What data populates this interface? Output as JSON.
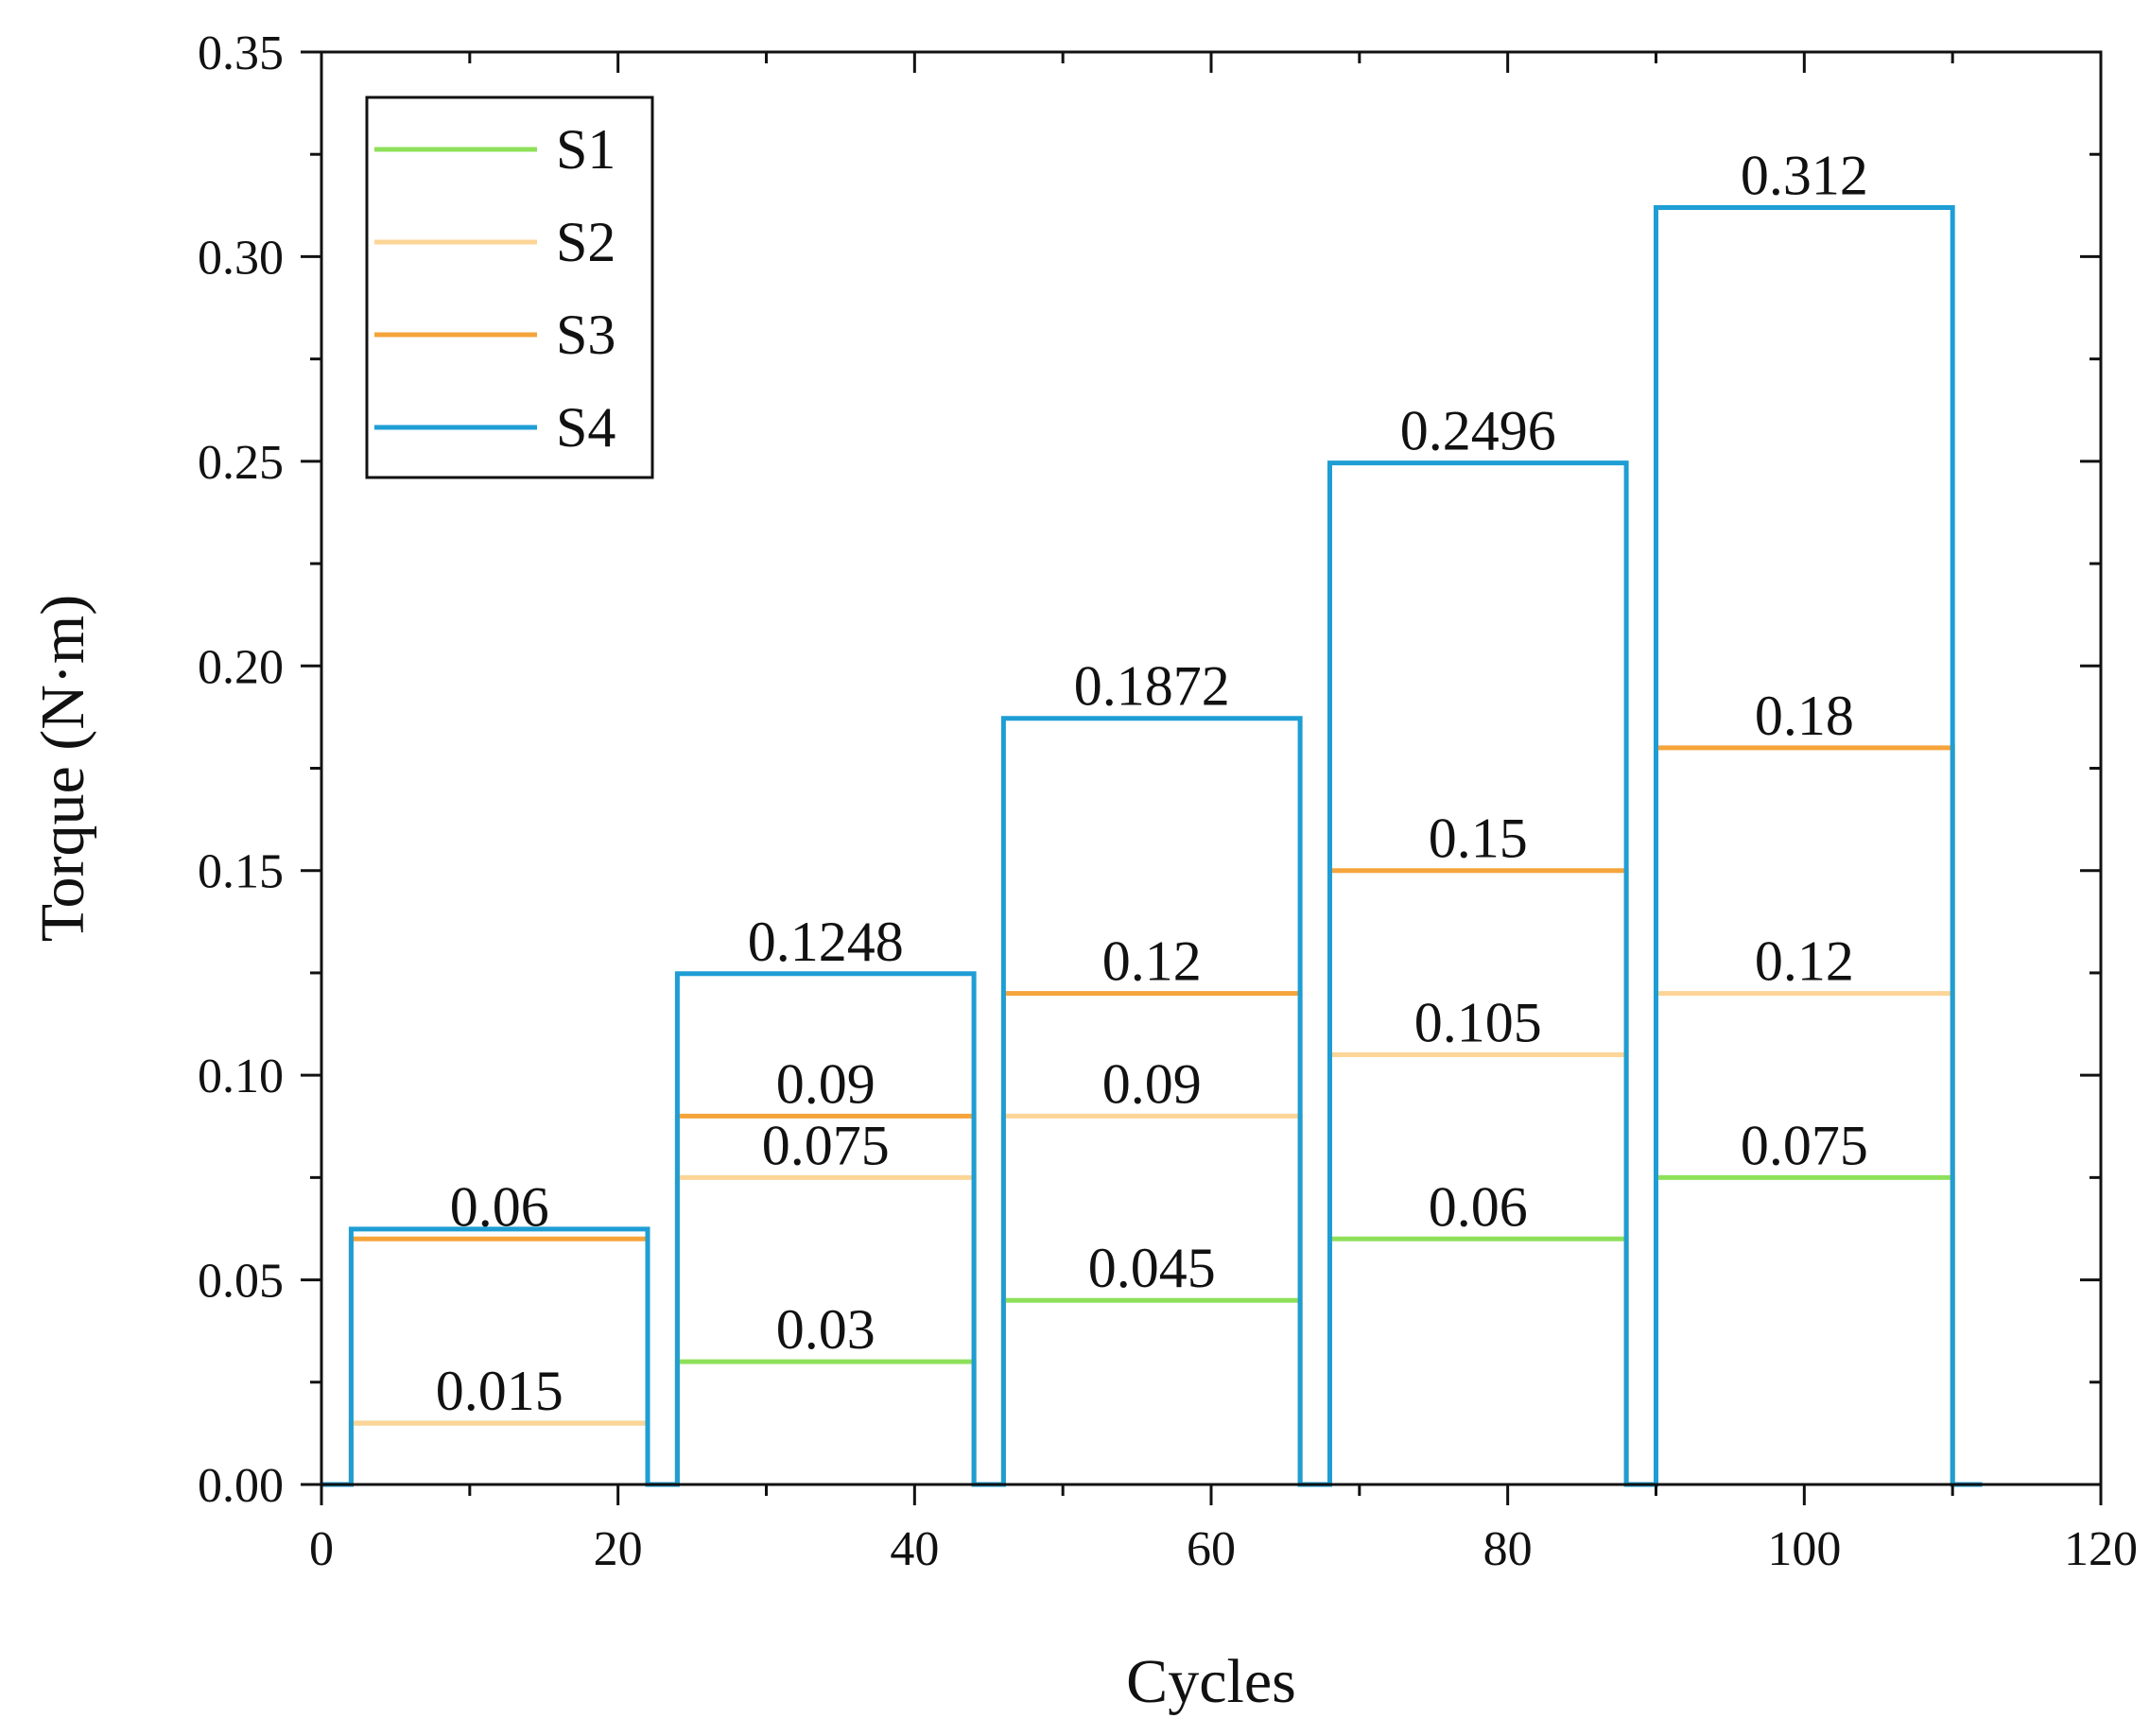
{
  "chart_data": {
    "type": "line",
    "title": "",
    "xlabel": "Cycles",
    "ylabel": "Torque (N·m)",
    "xlim": [
      0,
      120
    ],
    "ylim": [
      0,
      0.35
    ],
    "x_ticks": [
      0,
      20,
      40,
      60,
      80,
      100,
      120
    ],
    "x_tick_labels": [
      "0",
      "20",
      "40",
      "60",
      "80",
      "100",
      "120"
    ],
    "y_ticks": [
      0,
      0.05,
      0.1,
      0.15,
      0.2,
      0.25,
      0.3,
      0.35
    ],
    "y_tick_labels": [
      "0.00",
      "0.05",
      "0.10",
      "0.15",
      "0.20",
      "0.25",
      "0.30",
      "0.35"
    ],
    "grid": false,
    "legend_position": "top-left",
    "blocks": [
      {
        "x_start": 2,
        "x_end": 22
      },
      {
        "x_start": 24,
        "x_end": 44
      },
      {
        "x_start": 46,
        "x_end": 66
      },
      {
        "x_start": 68,
        "x_end": 88
      },
      {
        "x_start": 90,
        "x_end": 110
      }
    ],
    "x_end": 112,
    "series": [
      {
        "name": "S1",
        "color": "#8ee05a",
        "values": [
          0.015,
          0.03,
          0.045,
          0.06,
          0.075
        ],
        "labels": [
          "0.015",
          "0.03",
          "0.045",
          "0.06",
          "0.075"
        ]
      },
      {
        "name": "S2",
        "color": "#fcd597",
        "values": [
          0.015,
          0.075,
          0.09,
          0.105,
          0.12
        ],
        "labels": [
          "",
          "0.075",
          "0.09",
          "0.105",
          "0.12"
        ]
      },
      {
        "name": "S3",
        "color": "#f5a43a",
        "values": [
          0.06,
          0.09,
          0.12,
          0.15,
          0.18
        ],
        "labels": [
          "0.06",
          "0.09",
          "0.12",
          "0.15",
          "0.18"
        ]
      },
      {
        "name": "S4",
        "color": "#1e9ed4",
        "values": [
          0.0624,
          0.1248,
          0.1872,
          0.2496,
          0.312
        ],
        "labels": [
          "",
          "0.1248",
          "0.1872",
          "0.2496",
          "0.312"
        ]
      }
    ]
  }
}
